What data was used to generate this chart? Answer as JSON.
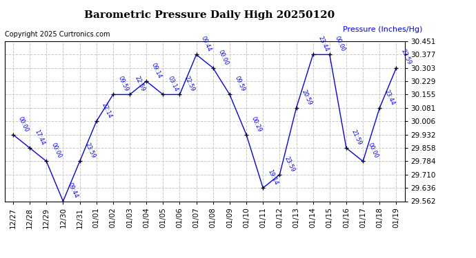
{
  "title": "Barometric Pressure Daily High 20250120",
  "ylabel": "Pressure (Inches/Hg)",
  "copyright": "Copyright 2025 Curtronics.com",
  "line_color": "blue",
  "marker_color": "black",
  "text_color": "blue",
  "background_color": "#ffffff",
  "plot_bg_color": "#ffffff",
  "grid_color": "#c8c8c8",
  "ylim_min": 29.562,
  "ylim_max": 30.451,
  "yticks": [
    29.562,
    29.636,
    29.71,
    29.784,
    29.858,
    29.932,
    30.006,
    30.081,
    30.155,
    30.229,
    30.303,
    30.377,
    30.451
  ],
  "dates": [
    "12/27",
    "12/28",
    "12/29",
    "12/30",
    "12/31",
    "01/01",
    "01/02",
    "01/03",
    "01/04",
    "01/05",
    "01/06",
    "01/07",
    "01/08",
    "01/09",
    "01/10",
    "01/11",
    "01/12",
    "01/13",
    "01/14",
    "01/15",
    "01/16",
    "01/17",
    "01/18",
    "01/19"
  ],
  "values": [
    29.932,
    29.858,
    29.784,
    29.562,
    29.784,
    30.006,
    30.155,
    30.155,
    30.229,
    30.155,
    30.155,
    30.377,
    30.303,
    30.155,
    29.932,
    29.636,
    29.71,
    30.081,
    30.377,
    30.377,
    29.858,
    29.784,
    30.081,
    30.303
  ],
  "time_labels": [
    "00:00",
    "17:44",
    "00:00",
    "09:44",
    "23:59",
    "22:14",
    "09:59",
    "22:59",
    "09:14",
    "03:14",
    "22:59",
    "09:44",
    "00:00",
    "09:59",
    "00:29",
    "19:14",
    "23:59",
    "20:59",
    "23:44",
    "00:00",
    "21:59",
    "00:00",
    "23:44",
    "23:59"
  ]
}
